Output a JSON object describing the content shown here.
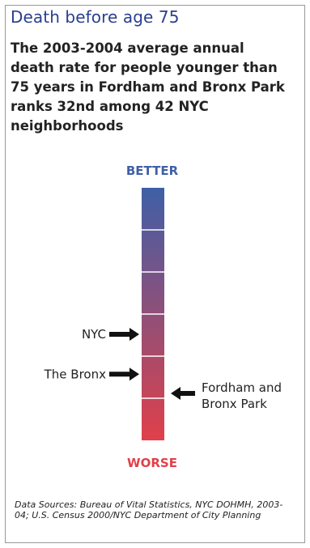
{
  "title": "Death before age 75",
  "subtitle": "The 2003-2004 average annual death rate for people younger than 75 years in Fordham and Bronx Park ranks 32nd among 42 NYC neighborhoods",
  "sources": "Data Sources:  Bureau of Vital Statistics, NYC DOHMH, 2003-04; U.S. Census 2000/NYC Department of City Planning",
  "colors": {
    "better": "#3f5fa7",
    "worse": "#e0404a",
    "title": "#2a3f8f"
  },
  "chart_data": {
    "type": "bar",
    "orientation": "vertical rank scale",
    "scale_top_label": "BETTER",
    "scale_bottom_label": "WORSE",
    "segments": 6,
    "markers": [
      {
        "label": "NYC",
        "side": "left",
        "position": 0.58
      },
      {
        "label": "The Bronx",
        "side": "left",
        "position": 0.738
      },
      {
        "label": "Fordham and Bronx Park",
        "lines": [
          "Fordham and",
          "Bronx Park"
        ],
        "side": "right",
        "position": 0.814
      }
    ]
  }
}
